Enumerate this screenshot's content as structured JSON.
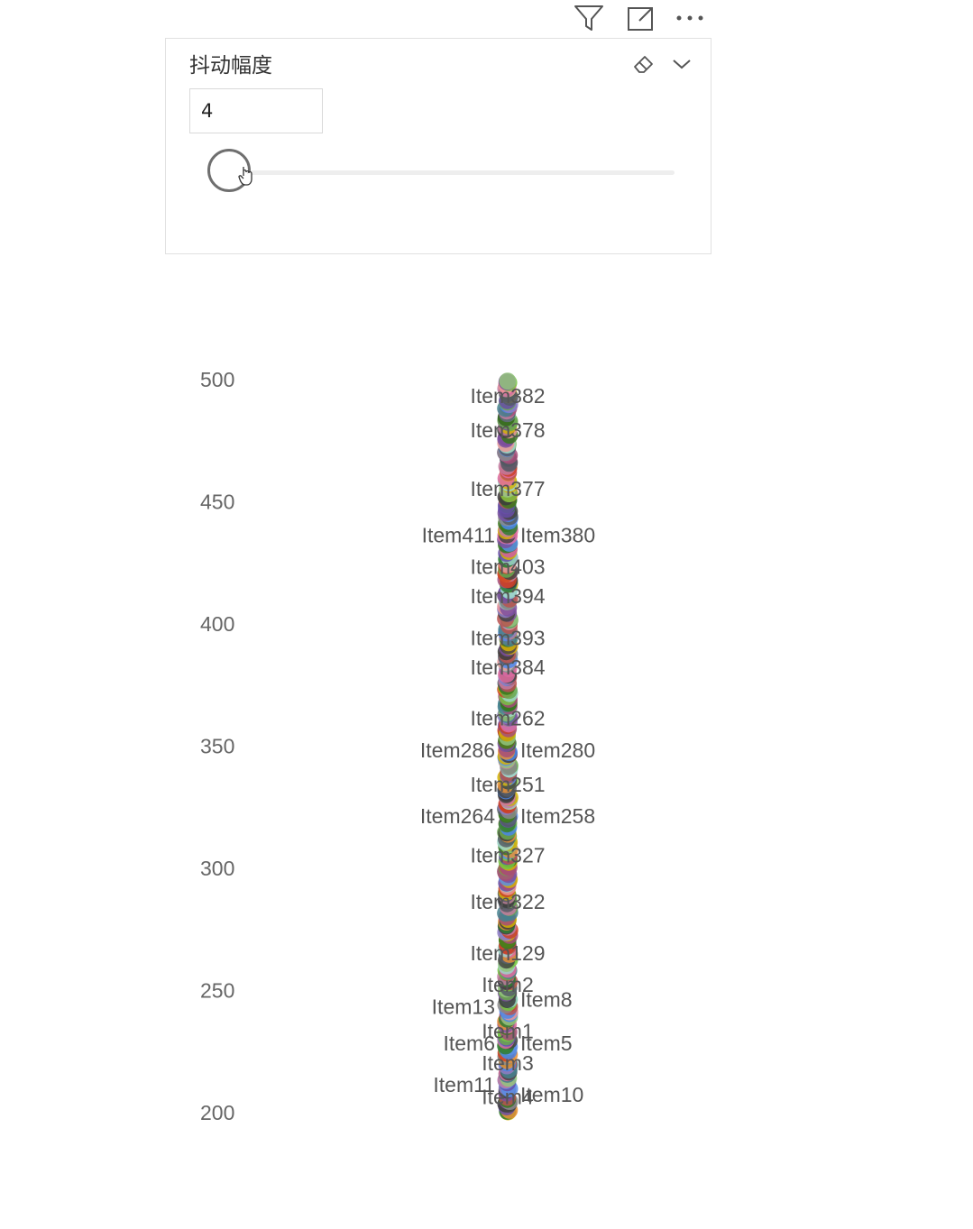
{
  "header": {
    "icons": [
      "filter-icon",
      "focus-mode-icon",
      "more-options-icon"
    ]
  },
  "slicer": {
    "title": "抖动幅度",
    "value": "4",
    "slider_fraction": 0.0,
    "icons": [
      "eraser-icon",
      "chevron-down-icon"
    ]
  },
  "colors": {
    "palette": [
      "#6aa84f",
      "#c27ba0",
      "#d4b106",
      "#444444",
      "#7b4f9d",
      "#5b8ee6",
      "#e06c9f",
      "#555c66",
      "#8e7cc3",
      "#76c442",
      "#a64d79",
      "#3c3c3c",
      "#2e7d32",
      "#b85450",
      "#e69138",
      "#93c47d",
      "#4a86e8",
      "#9fd5c9",
      "#674ea7",
      "#cc4125",
      "#45818e",
      "#ea9999",
      "#38761d",
      "#8a8a8a"
    ]
  },
  "chart_data": {
    "type": "scatter",
    "title": "",
    "xlabel": "",
    "ylabel": "",
    "ylim": [
      200,
      500
    ],
    "yticks": [
      200,
      250,
      300,
      350,
      400,
      450,
      500
    ],
    "jitter": 4,
    "point_count": 411,
    "points": [
      {
        "label": "Item382",
        "y": 493
      },
      {
        "label": "Item378",
        "y": 479
      },
      {
        "label": "Item377",
        "y": 455
      },
      {
        "label": "Item411",
        "y": 436
      },
      {
        "label": "Item380",
        "y": 436
      },
      {
        "label": "Item403",
        "y": 423
      },
      {
        "label": "Item394",
        "y": 411
      },
      {
        "label": "Item393",
        "y": 394
      },
      {
        "label": "Item384",
        "y": 382
      },
      {
        "label": "Item262",
        "y": 361
      },
      {
        "label": "Item286",
        "y": 348
      },
      {
        "label": "Item280",
        "y": 348
      },
      {
        "label": "Item251",
        "y": 334
      },
      {
        "label": "Item264",
        "y": 321
      },
      {
        "label": "Item258",
        "y": 321
      },
      {
        "label": "Item327",
        "y": 305
      },
      {
        "label": "Item322",
        "y": 286
      },
      {
        "label": "Item129",
        "y": 265
      },
      {
        "label": "Item2",
        "y": 252
      },
      {
        "label": "Item8",
        "y": 246
      },
      {
        "label": "Item13",
        "y": 243
      },
      {
        "label": "Item1",
        "y": 233
      },
      {
        "label": "Item6",
        "y": 228
      },
      {
        "label": "Item5",
        "y": 228
      },
      {
        "label": "Item3",
        "y": 220
      },
      {
        "label": "Item11",
        "y": 211
      },
      {
        "label": "Item10",
        "y": 207
      },
      {
        "label": "Item4",
        "y": 206
      }
    ]
  }
}
